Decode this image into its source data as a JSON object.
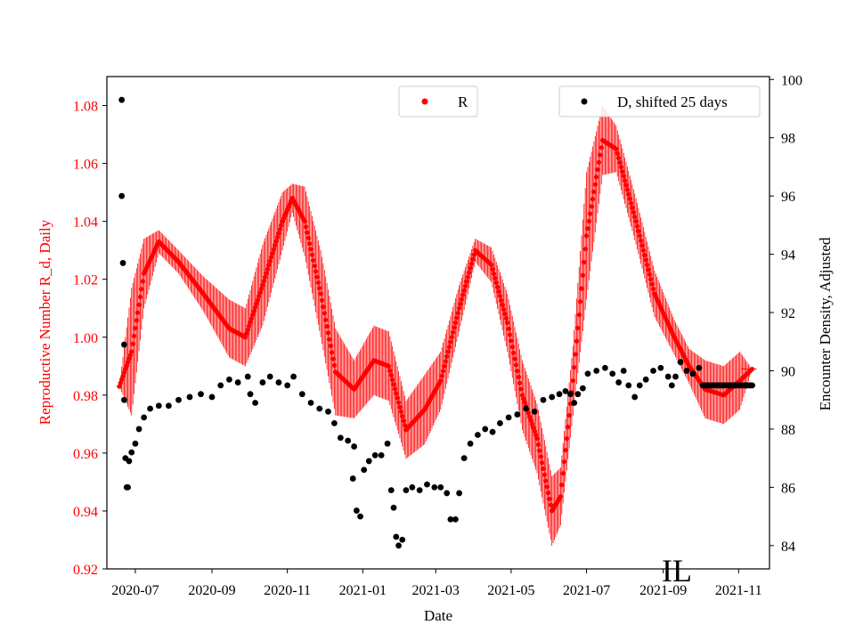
{
  "chart_data": {
    "type": "scatter",
    "xlabel": "Date",
    "ylabel_left": "Reproductive Number R_d, Daily",
    "ylabel_right": "Encounter Density, Adjusted",
    "x_ticks": [
      "2020-07",
      "2020-09",
      "2020-11",
      "2021-01",
      "2021-03",
      "2021-05",
      "2021-07",
      "2021-09",
      "2021-11"
    ],
    "ylim_left": [
      0.92,
      1.09
    ],
    "yticks_left": [
      "0.92",
      "0.94",
      "0.96",
      "0.98",
      "1.00",
      "1.02",
      "1.04",
      "1.06",
      "1.08"
    ],
    "ylim_right": [
      83.2,
      100.1
    ],
    "yticks_right": [
      "84",
      "86",
      "88",
      "90",
      "92",
      "94",
      "96",
      "98",
      "100"
    ],
    "annotation": "IL",
    "legend_left": {
      "label": "R",
      "position": "top-center"
    },
    "legend_right": {
      "label": "D, shifted 25 days",
      "position": "top-right"
    },
    "colors": {
      "R": "#ff0000",
      "D": "#000000",
      "left_axis": "#ff0000"
    },
    "series": [
      {
        "name": "R",
        "axis": "left",
        "error_bars": true,
        "points": [
          [
            "2020-06-18",
            0.983,
            0.0
          ],
          [
            "2020-06-28",
            0.995,
            0.022
          ],
          [
            "2020-07-08",
            1.022,
            0.012
          ],
          [
            "2020-07-20",
            1.033,
            0.004
          ],
          [
            "2020-08-05",
            1.026,
            0.004
          ],
          [
            "2020-08-25",
            1.015,
            0.006
          ],
          [
            "2020-09-15",
            1.003,
            0.01
          ],
          [
            "2020-09-28",
            1.0,
            0.01
          ],
          [
            "2020-10-12",
            1.018,
            0.014
          ],
          [
            "2020-10-28",
            1.04,
            0.01
          ],
          [
            "2020-11-05",
            1.048,
            0.005
          ],
          [
            "2020-11-15",
            1.04,
            0.012
          ],
          [
            "2020-11-28",
            1.015,
            0.015
          ],
          [
            "2020-12-10",
            0.988,
            0.015
          ],
          [
            "2020-12-25",
            0.982,
            0.01
          ],
          [
            "2021-01-10",
            0.992,
            0.012
          ],
          [
            "2021-01-22",
            0.99,
            0.012
          ],
          [
            "2021-02-05",
            0.968,
            0.01
          ],
          [
            "2021-02-20",
            0.975,
            0.012
          ],
          [
            "2021-03-05",
            0.985,
            0.01
          ],
          [
            "2021-03-20",
            1.01,
            0.008
          ],
          [
            "2021-04-02",
            1.03,
            0.004
          ],
          [
            "2021-04-15",
            1.025,
            0.006
          ],
          [
            "2021-04-28",
            1.005,
            0.01
          ],
          [
            "2021-05-10",
            0.98,
            0.012
          ],
          [
            "2021-05-22",
            0.965,
            0.012
          ],
          [
            "2021-06-03",
            0.94,
            0.012
          ],
          [
            "2021-06-10",
            0.945,
            0.01
          ],
          [
            "2021-06-20",
            0.985,
            0.012
          ],
          [
            "2021-07-01",
            1.035,
            0.022
          ],
          [
            "2021-07-14",
            1.068,
            0.012
          ],
          [
            "2021-07-25",
            1.065,
            0.008
          ],
          [
            "2021-08-10",
            1.04,
            0.008
          ],
          [
            "2021-08-25",
            1.015,
            0.008
          ],
          [
            "2021-09-10",
            1.0,
            0.006
          ],
          [
            "2021-09-22",
            0.99,
            0.006
          ],
          [
            "2021-10-05",
            0.982,
            0.01
          ],
          [
            "2021-10-20",
            0.98,
            0.01
          ],
          [
            "2021-11-02",
            0.985,
            0.01
          ],
          [
            "2021-11-12",
            0.989,
            0.0
          ]
        ]
      },
      {
        "name": "D, shifted 25 days",
        "axis": "right",
        "points": [
          [
            "2020-06-20",
            99.3
          ],
          [
            "2020-06-20",
            96.0
          ],
          [
            "2020-06-21",
            93.7
          ],
          [
            "2020-06-22",
            90.9
          ],
          [
            "2020-06-22",
            89.0
          ],
          [
            "2020-06-23",
            87.0
          ],
          [
            "2020-06-24",
            86.0
          ],
          [
            "2020-06-25",
            86.0
          ],
          [
            "2020-06-26",
            86.9
          ],
          [
            "2020-06-28",
            87.2
          ],
          [
            "2020-07-01",
            87.5
          ],
          [
            "2020-07-04",
            88.0
          ],
          [
            "2020-07-08",
            88.4
          ],
          [
            "2020-07-13",
            88.7
          ],
          [
            "2020-07-20",
            88.8
          ],
          [
            "2020-07-28",
            88.8
          ],
          [
            "2020-08-05",
            89.0
          ],
          [
            "2020-08-14",
            89.1
          ],
          [
            "2020-08-23",
            89.2
          ],
          [
            "2020-09-01",
            89.1
          ],
          [
            "2020-09-08",
            89.5
          ],
          [
            "2020-09-15",
            89.7
          ],
          [
            "2020-09-22",
            89.6
          ],
          [
            "2020-09-30",
            89.8
          ],
          [
            "2020-10-02",
            89.2
          ],
          [
            "2020-10-06",
            88.9
          ],
          [
            "2020-10-12",
            89.6
          ],
          [
            "2020-10-18",
            89.8
          ],
          [
            "2020-10-25",
            89.6
          ],
          [
            "2020-11-01",
            89.5
          ],
          [
            "2020-11-06",
            89.8
          ],
          [
            "2020-11-13",
            89.2
          ],
          [
            "2020-11-20",
            88.9
          ],
          [
            "2020-11-27",
            88.7
          ],
          [
            "2020-12-04",
            88.6
          ],
          [
            "2020-12-09",
            88.2
          ],
          [
            "2020-12-14",
            87.7
          ],
          [
            "2020-12-20",
            87.6
          ],
          [
            "2020-12-25",
            87.4
          ],
          [
            "2020-12-24",
            86.3
          ],
          [
            "2020-12-27",
            85.2
          ],
          [
            "2020-12-30",
            85.0
          ],
          [
            "2021-01-02",
            86.6
          ],
          [
            "2021-01-06",
            86.9
          ],
          [
            "2021-01-11",
            87.1
          ],
          [
            "2021-01-16",
            87.1
          ],
          [
            "2021-01-21",
            87.5
          ],
          [
            "2021-01-24",
            85.9
          ],
          [
            "2021-01-26",
            85.3
          ],
          [
            "2021-01-28",
            84.3
          ],
          [
            "2021-01-30",
            84.0
          ],
          [
            "2021-02-02",
            84.2
          ],
          [
            "2021-02-05",
            85.9
          ],
          [
            "2021-02-10",
            86.0
          ],
          [
            "2021-02-16",
            85.9
          ],
          [
            "2021-02-22",
            86.1
          ],
          [
            "2021-02-28",
            86.0
          ],
          [
            "2021-03-05",
            86.0
          ],
          [
            "2021-03-10",
            85.8
          ],
          [
            "2021-03-13",
            84.9
          ],
          [
            "2021-03-17",
            84.9
          ],
          [
            "2021-03-20",
            85.8
          ],
          [
            "2021-03-24",
            87.0
          ],
          [
            "2021-03-29",
            87.5
          ],
          [
            "2021-04-04",
            87.8
          ],
          [
            "2021-04-10",
            88.0
          ],
          [
            "2021-04-16",
            87.9
          ],
          [
            "2021-04-22",
            88.2
          ],
          [
            "2021-04-29",
            88.4
          ],
          [
            "2021-05-06",
            88.5
          ],
          [
            "2021-05-13",
            88.7
          ],
          [
            "2021-05-20",
            88.6
          ],
          [
            "2021-05-27",
            89.0
          ],
          [
            "2021-06-03",
            89.1
          ],
          [
            "2021-06-09",
            89.2
          ],
          [
            "2021-06-14",
            89.3
          ],
          [
            "2021-06-18",
            89.2
          ],
          [
            "2021-06-21",
            88.9
          ],
          [
            "2021-06-24",
            89.2
          ],
          [
            "2021-06-28",
            89.4
          ],
          [
            "2021-07-02",
            89.9
          ],
          [
            "2021-07-09",
            90.0
          ],
          [
            "2021-07-16",
            90.1
          ],
          [
            "2021-07-22",
            89.9
          ],
          [
            "2021-07-27",
            89.6
          ],
          [
            "2021-07-31",
            90.0
          ],
          [
            "2021-08-04",
            89.5
          ],
          [
            "2021-08-09",
            89.1
          ],
          [
            "2021-08-13",
            89.5
          ],
          [
            "2021-08-18",
            89.7
          ],
          [
            "2021-08-24",
            90.0
          ],
          [
            "2021-08-30",
            90.1
          ],
          [
            "2021-09-05",
            89.8
          ],
          [
            "2021-09-08",
            89.5
          ],
          [
            "2021-09-11",
            89.8
          ],
          [
            "2021-09-15",
            90.3
          ],
          [
            "2021-09-20",
            90.0
          ],
          [
            "2021-09-25",
            89.9
          ],
          [
            "2021-09-30",
            90.1
          ],
          [
            "2021-10-03",
            89.5
          ],
          [
            "2021-10-10",
            89.5
          ],
          [
            "2021-10-17",
            89.5
          ],
          [
            "2021-10-24",
            89.5
          ],
          [
            "2021-10-31",
            89.5
          ],
          [
            "2021-11-07",
            89.5
          ],
          [
            "2021-11-12",
            89.5
          ]
        ]
      }
    ]
  }
}
